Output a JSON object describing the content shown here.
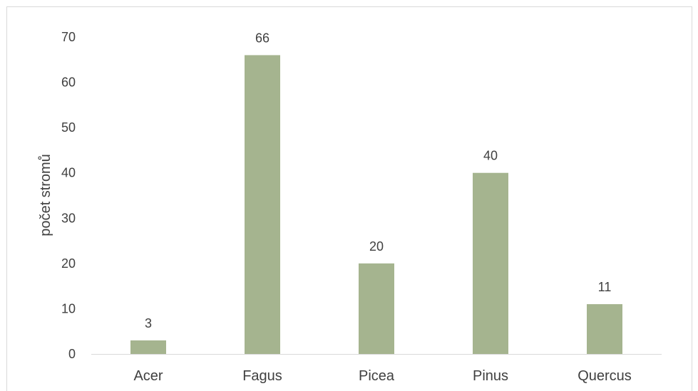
{
  "chart_data": {
    "type": "bar",
    "categories": [
      "Acer",
      "Fagus",
      "Picea",
      "Pinus",
      "Quercus"
    ],
    "values": [
      3,
      66,
      20,
      40,
      11
    ],
    "data_labels": [
      "3",
      "66",
      "20",
      "40",
      "11"
    ],
    "title": "",
    "xlabel": "",
    "ylabel": "počet stromů",
    "ylim": [
      0,
      70
    ],
    "yticks": [
      0,
      10,
      20,
      30,
      40,
      50,
      60,
      70
    ],
    "ytick_labels": [
      "0",
      "10",
      "20",
      "30",
      "40",
      "50",
      "60",
      "70"
    ],
    "grid": false,
    "legend": "none",
    "bar_color": "#a5b48f",
    "axis_color": "#d9d9d9",
    "text_color": "#404040"
  }
}
